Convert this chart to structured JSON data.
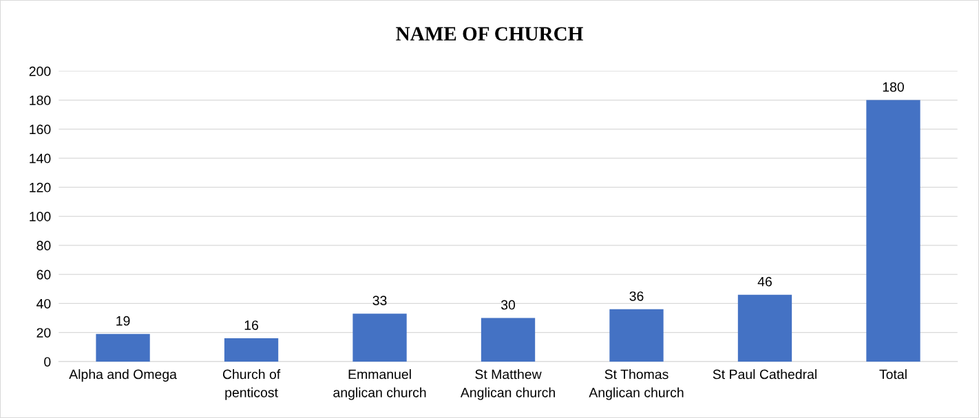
{
  "chart_data": {
    "type": "bar",
    "title": "NAME OF CHURCH",
    "categories": [
      "Alpha and Omega",
      "Church of\npenticost",
      "Emmanuel\nanglican church",
      "St Matthew\nAnglican church",
      "St Thomas\nAnglican church",
      "St Paul Cathedral",
      "Total"
    ],
    "values": [
      19,
      16,
      33,
      30,
      36,
      46,
      180
    ],
    "color": "#4472c4",
    "ylim": [
      0,
      200
    ],
    "yticks": [
      0,
      20,
      40,
      60,
      80,
      100,
      120,
      140,
      160,
      180,
      200
    ],
    "grid": "y",
    "data_labels": true
  }
}
